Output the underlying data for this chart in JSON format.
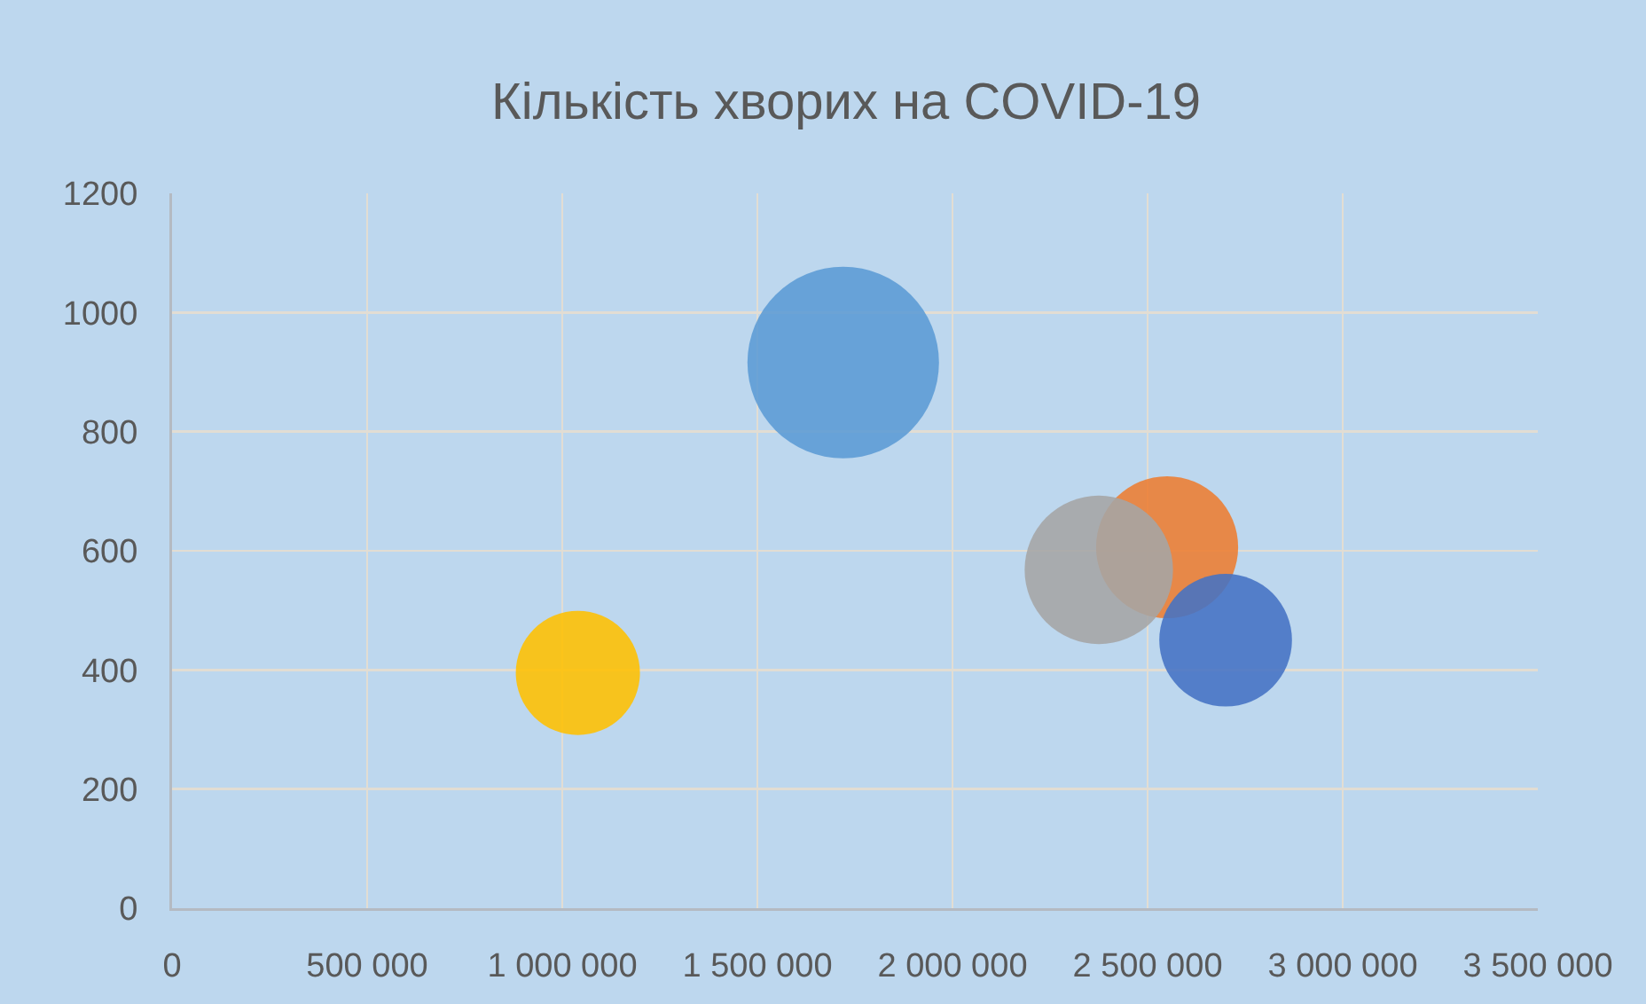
{
  "chart_data": {
    "type": "bubble",
    "title": "Кількість хворих на COVID-19",
    "x": [
      1720000,
      2550000,
      2375000,
      1040000,
      2700000
    ],
    "values": [
      916,
      606,
      568,
      395,
      450
    ],
    "sizes": [
      1,
      0.55,
      0.6,
      0.42,
      0.48
    ],
    "colors": [
      "#5b9bd5",
      "#ed7d31",
      "#a5a5a5",
      "#ffc000",
      "#4472c4"
    ],
    "xlim": [
      0,
      3500000
    ],
    "xticks": [
      0,
      {
        "value": 500000,
        "label": "500 000"
      },
      {
        "value": 1000000,
        "label": "1 000 000"
      },
      {
        "value": 1500000,
        "label": "1 500 000"
      },
      {
        "value": 2000000,
        "label": "2 000 000"
      },
      {
        "value": 2500000,
        "label": "2 500 000"
      },
      {
        "value": 3000000,
        "label": "3 000 000"
      },
      {
        "value": 3500000,
        "label": "3 500 000"
      }
    ],
    "ylim": [
      0,
      1200
    ],
    "yticks": [
      0,
      200,
      400,
      600,
      800,
      1000,
      1200
    ],
    "grid": true
  }
}
